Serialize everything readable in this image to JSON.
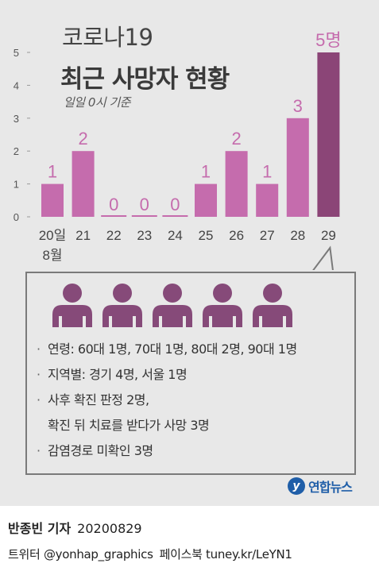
{
  "header": {
    "title_line1": "코로나19",
    "title_line2": "최근 사망자 현황",
    "subtitle": "일일 0시 기준"
  },
  "chart_data": {
    "type": "bar",
    "categories": [
      "20일",
      "21",
      "22",
      "23",
      "24",
      "25",
      "26",
      "27",
      "28",
      "29"
    ],
    "month_label": "8월",
    "values": [
      1,
      2,
      0,
      0,
      0,
      1,
      2,
      1,
      3,
      5
    ],
    "value_labels": [
      "1",
      "2",
      "0",
      "0",
      "0",
      "1",
      "2",
      "1",
      "3",
      "5명"
    ],
    "y_ticks": [
      0,
      1,
      2,
      3,
      4,
      5
    ],
    "ylim": [
      0,
      5
    ],
    "highlight_index": 9,
    "colors": {
      "bar": "#c56cad",
      "highlight": "#8b4577",
      "zero_line": "#c56cad",
      "label": "#c56cad",
      "axis": "#999999"
    }
  },
  "info": {
    "person_count": 5,
    "person_color": "#864a79",
    "items": [
      {
        "text": "연령: 60대 1명, 70대 1명, 80대 2명, 90대 1명",
        "bullet": "·"
      },
      {
        "text": "지역별: 경기 4명, 서울 1명",
        "bullet": "·"
      },
      {
        "text": "사후 확진 판정 2명,",
        "bullet": "·"
      },
      {
        "text": "확진 뒤 치료를 받다가 사망 3명",
        "bullet": ""
      },
      {
        "text": "감염경로 미확인 3명",
        "bullet": "·"
      }
    ]
  },
  "logo": {
    "mark": "y",
    "text": "연합뉴스"
  },
  "footer": {
    "reporter": "반종빈 기자",
    "date": "20200829",
    "twitter": "트위터 @yonhap_graphics",
    "facebook": "페이스북 tuney.kr/LeYN1"
  }
}
